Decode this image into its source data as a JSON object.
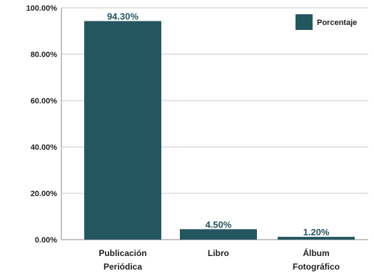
{
  "chart_data": {
    "type": "bar",
    "categories": [
      [
        "Publicación",
        "Periódica"
      ],
      [
        "Libro"
      ],
      [
        "Álbum",
        "Fotográfico"
      ]
    ],
    "series": [
      {
        "name": "Porcentaje",
        "values": [
          94.3,
          4.5,
          1.2
        ],
        "data_labels": [
          "94.30%",
          "4.50%",
          "1.20%"
        ]
      }
    ],
    "y_ticks": [
      0,
      20,
      40,
      60,
      80,
      100
    ],
    "y_tick_labels": [
      "0.00%",
      "20.00%",
      "40.00%",
      "60.00%",
      "80.00%",
      "100.00%"
    ],
    "ylim": [
      0,
      100
    ],
    "grid": true,
    "legend": "top-right",
    "colors": {
      "bar": "#245660",
      "data_label": "#245660",
      "grid": "#c8c8c8",
      "axis": "#888888"
    }
  }
}
